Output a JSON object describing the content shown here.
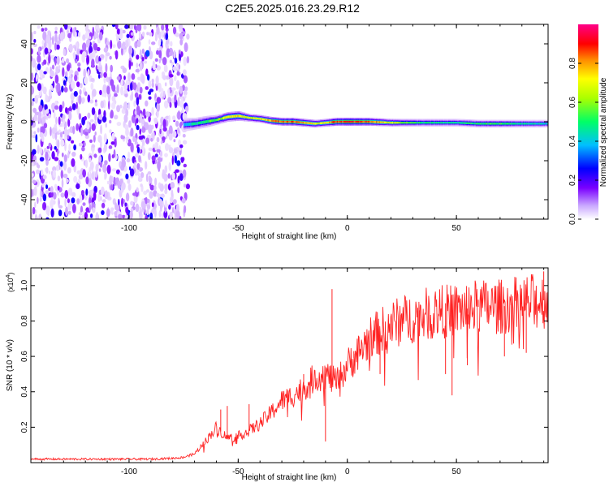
{
  "title": "C2E5.2025.016.23.29.R12",
  "chart_data": [
    {
      "type": "heatmap",
      "xlabel": "Height of straight line (km)",
      "ylabel": "Frequency (Hz)",
      "xlim": [
        -145,
        92
      ],
      "ylim": [
        -50,
        50
      ],
      "xticks": [
        -100,
        -50,
        0,
        50
      ],
      "yticks": [
        -40,
        -20,
        0,
        20,
        40
      ],
      "x_tick_labels": [
        "-100",
        "-50",
        "0",
        "50"
      ],
      "y_tick_labels": [
        "-40",
        "-20",
        "0",
        "20",
        "40"
      ],
      "colorbar": {
        "label": "Normalized spectral amplitude",
        "range": [
          0,
          1
        ],
        "ticks": [
          0.0,
          0.2,
          0.4,
          0.6,
          0.8
        ],
        "tick_labels": [
          "0.0",
          "0.2",
          "0.4",
          "0.6",
          "0.8"
        ],
        "colors": [
          "#ffffff",
          "#d8b8ff",
          "#7a00ff",
          "#0000ff",
          "#00bfff",
          "#00ff66",
          "#aaff00",
          "#ffff00",
          "#ff8800",
          "#ff0000",
          "#ff0088"
        ]
      },
      "noise_region": {
        "x_start": -145,
        "x_end": -75,
        "amplitude": 0.25
      },
      "ridge": {
        "x": [
          -75,
          -70,
          -65,
          -60,
          -55,
          -50,
          -45,
          -40,
          -35,
          -30,
          -25,
          -20,
          -15,
          -10,
          -5,
          0,
          10,
          20,
          30,
          40,
          50,
          60,
          70,
          80,
          92
        ],
        "freq": [
          -1.5,
          -1,
          0,
          1,
          2.5,
          3,
          2,
          1.5,
          0.5,
          0,
          0,
          -0.5,
          -1,
          -0.5,
          0,
          0,
          0,
          -0.5,
          -0.5,
          -0.5,
          -0.5,
          -1,
          -1,
          -1,
          -1
        ],
        "peak_amplitude": [
          0.45,
          0.5,
          0.55,
          0.6,
          0.75,
          0.8,
          0.7,
          0.75,
          0.85,
          0.9,
          0.9,
          0.85,
          0.7,
          0.8,
          0.95,
          0.95,
          0.9,
          0.7,
          0.55,
          0.5,
          0.5,
          0.55,
          0.55,
          0.5,
          0.45
        ],
        "width_hz": [
          7,
          6,
          6,
          5,
          5,
          5,
          4,
          4,
          4,
          4,
          4,
          4,
          4,
          4,
          4,
          4,
          4,
          4,
          4,
          4,
          4,
          4,
          4,
          4,
          4
        ]
      }
    },
    {
      "type": "line",
      "xlabel": "Height of straight line (km)",
      "ylabel": "SNR (10 * v/v)",
      "y_multiplier": "(x10",
      "y_multiplier_exp": "4",
      "y_multiplier_close": ")",
      "xlim": [
        -145,
        92
      ],
      "ylim": [
        0,
        1.1
      ],
      "xticks": [
        -100,
        -50,
        0,
        50
      ],
      "yticks": [
        0.2,
        0.4,
        0.6,
        0.8,
        1.0
      ],
      "x_tick_labels": [
        "-100",
        "-50",
        "0",
        "50"
      ],
      "y_tick_labels": [
        "0.2",
        "0.4",
        "0.6",
        "0.8",
        "1.0"
      ],
      "color": "#ff2222",
      "x": [
        -145,
        -120,
        -100,
        -90,
        -80,
        -75,
        -70,
        -65,
        -60,
        -55,
        -50,
        -45,
        -40,
        -35,
        -30,
        -25,
        -20,
        -15,
        -10,
        -5,
        0,
        5,
        10,
        20,
        30,
        40,
        50,
        60,
        70,
        80,
        92
      ],
      "y": [
        0.02,
        0.02,
        0.02,
        0.02,
        0.025,
        0.03,
        0.05,
        0.12,
        0.2,
        0.14,
        0.15,
        0.18,
        0.22,
        0.28,
        0.35,
        0.38,
        0.42,
        0.48,
        0.5,
        0.45,
        0.55,
        0.62,
        0.7,
        0.78,
        0.82,
        0.85,
        0.86,
        0.88,
        0.88,
        0.9,
        0.92
      ],
      "spikes": [
        {
          "x": -58,
          "y": 0.3
        },
        {
          "x": -55,
          "y": 0.32
        },
        {
          "x": -45,
          "y": 0.33
        },
        {
          "x": -30,
          "y": 0.4
        },
        {
          "x": -20,
          "y": 0.5
        },
        {
          "x": -12,
          "y": 0.48
        },
        {
          "x": -7,
          "y": 0.98
        },
        {
          "x": 3,
          "y": 0.63
        },
        {
          "x": 20,
          "y": 0.78
        },
        {
          "x": 33,
          "y": 0.86
        },
        {
          "x": 45,
          "y": 0.9
        },
        {
          "x": 60,
          "y": 0.92
        },
        {
          "x": 75,
          "y": 0.95
        },
        {
          "x": 90,
          "y": 1.08
        }
      ],
      "dips": [
        {
          "x": -10,
          "y": 0.12
        },
        {
          "x": 15,
          "y": 0.5
        },
        {
          "x": 45,
          "y": 0.5
        },
        {
          "x": 48,
          "y": 0.38
        },
        {
          "x": 55,
          "y": 0.55
        },
        {
          "x": 72,
          "y": 0.6
        },
        {
          "x": 82,
          "y": 0.62
        }
      ]
    }
  ]
}
